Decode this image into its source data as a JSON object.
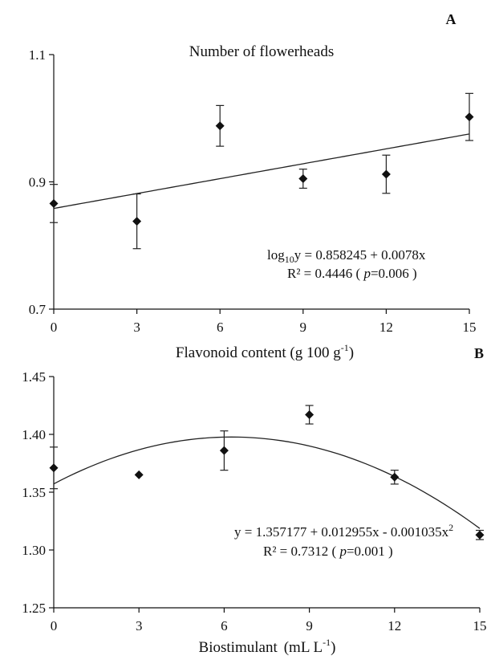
{
  "figure": {
    "xlabel_main": "Biostimulant",
    "xlabel_unit_open": "(mL L",
    "xlabel_unit_exp": "-1",
    "xlabel_unit_close": ")"
  },
  "chart_data": [
    {
      "type": "scatter",
      "panel_label": "A",
      "title": "Number of flowerheads",
      "xlabel": "",
      "ylabel": "",
      "xlim": [
        0,
        15
      ],
      "ylim": [
        0.7,
        1.1
      ],
      "xticks": [
        0,
        3,
        6,
        9,
        12,
        15
      ],
      "yticks": [
        0.7,
        0.9,
        1.1
      ],
      "ytick_labels": [
        "0.7",
        "0.9",
        "1.1"
      ],
      "grid": false,
      "points": [
        {
          "x": 0,
          "y": 0.866,
          "err": 0.03
        },
        {
          "x": 3,
          "y": 0.838,
          "err": 0.043
        },
        {
          "x": 6,
          "y": 0.988,
          "err": 0.032
        },
        {
          "x": 9,
          "y": 0.905,
          "err": 0.015
        },
        {
          "x": 12,
          "y": 0.912,
          "err": 0.03
        },
        {
          "x": 15,
          "y": 1.002,
          "err": 0.037
        }
      ],
      "fit": {
        "kind": "linear",
        "intercept": 0.858245,
        "slope": 0.0078
      },
      "equation": {
        "line1_pre": "log",
        "line1_sub": "10",
        "line1_post": "y =  0.858245 + 0.0078x",
        "line2_pre": "R² = 0.4446  ( ",
        "line2_p": "p",
        "line2_post": "=0.006 )"
      }
    },
    {
      "type": "scatter",
      "panel_label": "B",
      "title_pre": "Flavonoid content (g 100 g",
      "title_exp": "-1",
      "title_post": ")",
      "xlabel": "",
      "ylabel": "",
      "xlim": [
        0,
        15
      ],
      "ylim": [
        1.25,
        1.45
      ],
      "xticks": [
        0,
        3,
        6,
        9,
        12,
        15
      ],
      "yticks": [
        1.25,
        1.3,
        1.35,
        1.4,
        1.45
      ],
      "ytick_labels": [
        "1.25",
        "1.30",
        "1.35",
        "1.40",
        "1.45"
      ],
      "grid": false,
      "points": [
        {
          "x": 0,
          "y": 1.371,
          "err": 0.018
        },
        {
          "x": 3,
          "y": 1.365,
          "err": 0
        },
        {
          "x": 6,
          "y": 1.386,
          "err": 0.017
        },
        {
          "x": 9,
          "y": 1.417,
          "err": 0.008
        },
        {
          "x": 12,
          "y": 1.363,
          "err": 0.006
        },
        {
          "x": 15,
          "y": 1.313,
          "err": 0.004
        }
      ],
      "fit": {
        "kind": "quadratic",
        "a": 1.357177,
        "b": 0.012955,
        "c": -0.001035
      },
      "equation": {
        "line1_pre": "y = 1.357177 + 0.012955x - 0.001035x",
        "line1_sup": "2",
        "line2_pre": "R² = 0.7312   ( ",
        "line2_p": "p",
        "line2_post": "=0.001 )"
      }
    }
  ]
}
